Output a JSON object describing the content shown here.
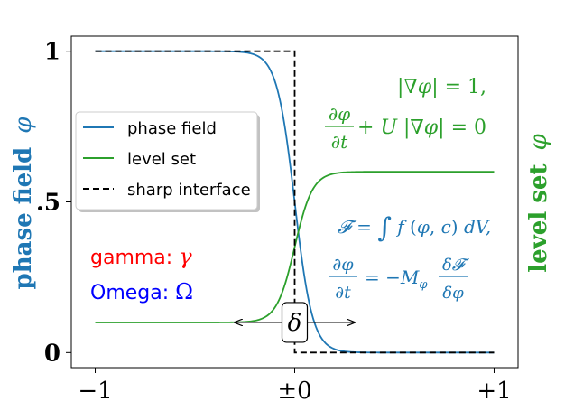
{
  "chart_data": {
    "type": "line",
    "title": "",
    "xlabel": "",
    "ylabel_left": "phase field",
    "ylabel_left_symbol": "φ",
    "ylabel_right": "level set",
    "ylabel_right_symbol": "φ",
    "xlim": [
      -1.12,
      1.12
    ],
    "ylim": [
      -0.05,
      1.05
    ],
    "xticks": [
      {
        "value": -1,
        "label": "−1"
      },
      {
        "value": 0,
        "label": "±0"
      },
      {
        "value": 1,
        "label": "+1"
      }
    ],
    "yticks": [
      {
        "value": 0,
        "label": "0"
      },
      {
        "value": 0.5,
        "label": ".5"
      },
      {
        "value": 1,
        "label": "1"
      }
    ],
    "grid": false,
    "legend_position": "center-left",
    "series": [
      {
        "name": "phase field",
        "color": "#1f77b4",
        "style": "solid",
        "kind": "tanh",
        "center": 0.0,
        "width": 0.09,
        "high": 1.0,
        "low": 0.0,
        "x": [
          -1,
          -0.5,
          -0.25,
          -0.1,
          0,
          0.1,
          0.25,
          0.5,
          1
        ],
        "y": [
          1.0,
          1.0,
          0.99,
          0.81,
          0.5,
          0.19,
          0.01,
          0.0,
          0.0
        ]
      },
      {
        "name": "level set",
        "color": "#2ca02c",
        "style": "solid",
        "kind": "tanh",
        "center": 0.0,
        "width": 0.09,
        "high": 0.6,
        "low": 0.1,
        "x": [
          -1,
          -0.5,
          -0.25,
          -0.1,
          0,
          0.1,
          0.25,
          0.5,
          1
        ],
        "y": [
          0.1,
          0.1,
          0.1,
          0.19,
          0.35,
          0.51,
          0.6,
          0.6,
          0.6
        ]
      },
      {
        "name": "sharp interface",
        "color": "#000000",
        "style": "dashed",
        "kind": "step",
        "x": [
          -1,
          0,
          0,
          1
        ],
        "y": [
          1.0,
          1.0,
          0.0,
          0.0
        ]
      }
    ],
    "annotations": [
      {
        "id": "gamma",
        "text": "gamma: ",
        "symbol": "γ",
        "color": "#ff0000"
      },
      {
        "id": "omega",
        "text": "Omega: ",
        "symbol": "Ω",
        "color": "#0000ff"
      },
      {
        "id": "delta",
        "symbol": "δ",
        "color": "#000000",
        "arrow_from": -0.3,
        "arrow_to": 0.3,
        "y": 0.1
      },
      {
        "id": "eq_levelset_1",
        "color": "#2ca02c",
        "text": "|∇φ| = 1,"
      },
      {
        "id": "eq_levelset_2",
        "color": "#2ca02c",
        "text": "∂φ/∂t + U|∇φ| = 0"
      },
      {
        "id": "eq_phasefield_1",
        "color": "#1f77b4",
        "text": "𝓕 = ∫ f(φ,c) dV,"
      },
      {
        "id": "eq_phasefield_2",
        "color": "#1f77b4",
        "text": "∂φ/∂t = −M_φ δ𝓕/δφ"
      }
    ]
  }
}
